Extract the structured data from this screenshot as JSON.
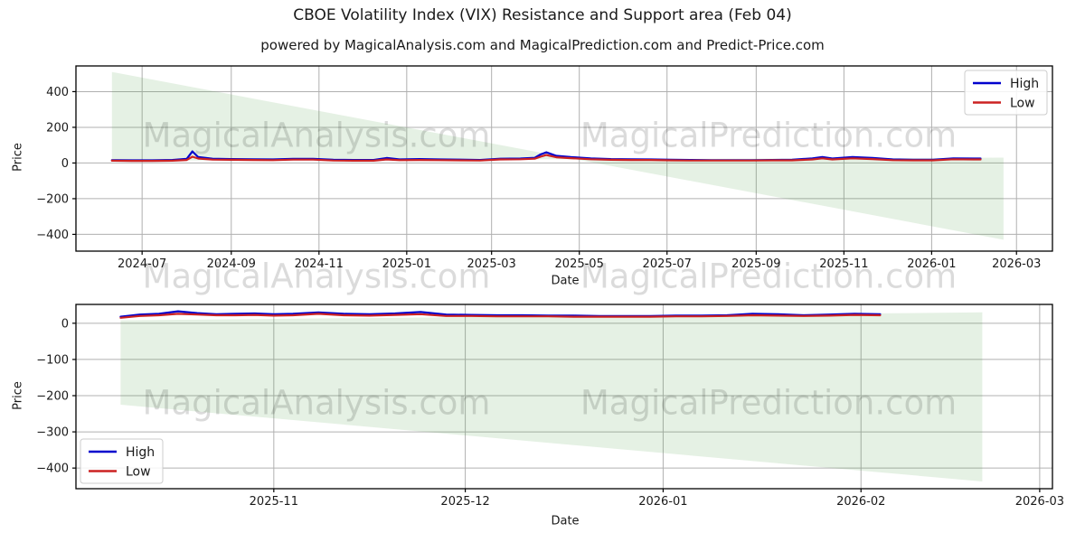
{
  "title": "CBOE Volatility Index (VIX) Resistance and Support area (Feb 04)",
  "subtitle": "powered by MagicalAnalysis.com and MagicalPrediction.com and Predict-Price.com",
  "watermarks": {
    "analysis": "MagicalAnalysis.com",
    "prediction": "MagicalPrediction.com"
  },
  "colors": {
    "high_line": "#0000cd",
    "low_line": "#cc2222",
    "support_area_fill": "#4a9b3f",
    "support_area_opacity": 0.14,
    "grid": "#b0b0b0",
    "spine": "#000000",
    "legend_border": "#cccccc",
    "watermark": "rgba(0,0,0,0.14)"
  },
  "chart_data": [
    {
      "type": "line",
      "xlabel": "Date",
      "ylabel": "Price",
      "grid": true,
      "legend_loc": "upper right",
      "x_domain": [
        "2024-05-16",
        "2026-03-26"
      ],
      "ylim": [
        -494,
        544
      ],
      "x_ticks": [
        {
          "d": "2024-07-01",
          "label": "2024-07"
        },
        {
          "d": "2024-09-01",
          "label": "2024-09"
        },
        {
          "d": "2024-11-01",
          "label": "2024-11"
        },
        {
          "d": "2025-01-01",
          "label": "2025-01"
        },
        {
          "d": "2025-03-01",
          "label": "2025-03"
        },
        {
          "d": "2025-05-01",
          "label": "2025-05"
        },
        {
          "d": "2025-07-01",
          "label": "2025-07"
        },
        {
          "d": "2025-09-01",
          "label": "2025-09"
        },
        {
          "d": "2025-11-01",
          "label": "2025-11"
        },
        {
          "d": "2026-01-01",
          "label": "2026-01"
        },
        {
          "d": "2026-03-01",
          "label": "2026-03"
        }
      ],
      "y_ticks": [
        {
          "v": 400,
          "label": "400"
        },
        {
          "v": 200,
          "label": "200"
        },
        {
          "v": 0,
          "label": "0"
        },
        {
          "v": -200,
          "label": "−200"
        },
        {
          "v": -400,
          "label": "−400"
        }
      ],
      "area": {
        "name": "resistance-support-area",
        "start": "2024-06-10",
        "end": "2026-02-20",
        "line_a": [
          510,
          -430
        ],
        "line_b": [
          13,
          30
        ]
      },
      "series": [
        {
          "name": "High",
          "color": "#0000cd",
          "dates": [
            "2024-06-10",
            "2024-06-24",
            "2024-07-08",
            "2024-07-22",
            "2024-08-01",
            "2024-08-05",
            "2024-08-09",
            "2024-08-19",
            "2024-09-02",
            "2024-09-16",
            "2024-09-30",
            "2024-10-14",
            "2024-10-28",
            "2024-11-11",
            "2024-11-25",
            "2024-12-09",
            "2024-12-18",
            "2024-12-27",
            "2025-01-10",
            "2025-01-24",
            "2025-02-07",
            "2025-02-21",
            "2025-03-07",
            "2025-03-21",
            "2025-03-31",
            "2025-04-04",
            "2025-04-08",
            "2025-04-15",
            "2025-04-25",
            "2025-05-09",
            "2025-05-23",
            "2025-06-06",
            "2025-06-20",
            "2025-07-04",
            "2025-07-18",
            "2025-08-01",
            "2025-08-15",
            "2025-08-29",
            "2025-09-12",
            "2025-09-26",
            "2025-10-10",
            "2025-10-17",
            "2025-10-24",
            "2025-11-07",
            "2025-11-21",
            "2025-12-05",
            "2025-12-19",
            "2026-01-02",
            "2026-01-16",
            "2026-01-30",
            "2026-02-04"
          ],
          "values": [
            16,
            15,
            15,
            17,
            23,
            65,
            33,
            24,
            22,
            21,
            20,
            23,
            23,
            18,
            17,
            17,
            28,
            20,
            22,
            20,
            19,
            17,
            24,
            25,
            29,
            48,
            60,
            40,
            33,
            26,
            22,
            21,
            20,
            18,
            17,
            16,
            16,
            16,
            17,
            18,
            26,
            33,
            25,
            33,
            28,
            20,
            18,
            18,
            26,
            25,
            25
          ]
        },
        {
          "name": "Low",
          "color": "#cc2222",
          "dates": [
            "2024-06-10",
            "2024-06-24",
            "2024-07-08",
            "2024-07-22",
            "2024-08-01",
            "2024-08-05",
            "2024-08-09",
            "2024-08-19",
            "2024-09-02",
            "2024-09-16",
            "2024-09-30",
            "2024-10-14",
            "2024-10-28",
            "2024-11-11",
            "2024-11-25",
            "2024-12-09",
            "2024-12-18",
            "2024-12-27",
            "2025-01-10",
            "2025-01-24",
            "2025-02-07",
            "2025-02-21",
            "2025-03-07",
            "2025-03-21",
            "2025-03-31",
            "2025-04-04",
            "2025-04-08",
            "2025-04-15",
            "2025-04-25",
            "2025-05-09",
            "2025-05-23",
            "2025-06-06",
            "2025-06-20",
            "2025-07-04",
            "2025-07-18",
            "2025-08-01",
            "2025-08-15",
            "2025-08-29",
            "2025-09-12",
            "2025-09-26",
            "2025-10-10",
            "2025-10-17",
            "2025-10-24",
            "2025-11-07",
            "2025-11-21",
            "2025-12-05",
            "2025-12-19",
            "2026-01-02",
            "2026-01-16",
            "2026-01-30",
            "2026-02-04"
          ],
          "values": [
            13,
            12,
            12,
            13,
            17,
            35,
            25,
            19,
            18,
            17,
            16,
            19,
            19,
            14,
            13,
            13,
            20,
            16,
            17,
            16,
            15,
            14,
            20,
            21,
            24,
            35,
            45,
            32,
            27,
            21,
            18,
            17,
            17,
            15,
            14,
            14,
            14,
            14,
            15,
            15,
            20,
            26,
            20,
            26,
            22,
            16,
            15,
            15,
            21,
            20,
            20
          ]
        }
      ]
    },
    {
      "type": "line",
      "xlabel": "Date",
      "ylabel": "Price",
      "grid": true,
      "legend_loc": "lower left",
      "x_domain": [
        "2025-10-01",
        "2026-03-03"
      ],
      "ylim": [
        -457,
        52
      ],
      "x_ticks": [
        {
          "d": "2025-11-01",
          "label": "2025-11"
        },
        {
          "d": "2025-12-01",
          "label": "2025-12"
        },
        {
          "d": "2026-01-01",
          "label": "2026-01"
        },
        {
          "d": "2026-02-01",
          "label": "2026-02"
        },
        {
          "d": "2026-03-01",
          "label": "2026-03"
        }
      ],
      "y_ticks": [
        {
          "v": 0,
          "label": "0"
        },
        {
          "v": -100,
          "label": "−100"
        },
        {
          "v": -200,
          "label": "−200"
        },
        {
          "v": -300,
          "label": "−300"
        },
        {
          "v": -400,
          "label": "−400"
        }
      ],
      "area": {
        "name": "resistance-support-area",
        "start": "2025-10-08",
        "end": "2026-02-20",
        "line_a": [
          -225,
          -437
        ],
        "line_b": [
          8,
          30
        ]
      },
      "series": [
        {
          "name": "High",
          "color": "#0000cd",
          "dates": [
            "2025-10-08",
            "2025-10-11",
            "2025-10-14",
            "2025-10-17",
            "2025-10-20",
            "2025-10-23",
            "2025-10-26",
            "2025-10-29",
            "2025-11-01",
            "2025-11-04",
            "2025-11-08",
            "2025-11-12",
            "2025-11-16",
            "2025-11-20",
            "2025-11-24",
            "2025-11-28",
            "2025-12-02",
            "2025-12-06",
            "2025-12-10",
            "2025-12-14",
            "2025-12-18",
            "2025-12-22",
            "2025-12-26",
            "2025-12-30",
            "2026-01-03",
            "2026-01-07",
            "2026-01-11",
            "2026-01-15",
            "2026-01-19",
            "2026-01-23",
            "2026-01-27",
            "2026-01-31",
            "2026-02-04"
          ],
          "values": [
            18,
            24,
            26,
            33,
            28,
            25,
            26,
            27,
            25,
            26,
            30,
            26,
            25,
            27,
            31,
            24,
            23,
            22,
            22,
            21,
            21,
            20,
            20,
            20,
            21,
            21,
            22,
            26,
            25,
            22,
            24,
            26,
            25
          ]
        },
        {
          "name": "Low",
          "color": "#cc2222",
          "dates": [
            "2025-10-08",
            "2025-10-11",
            "2025-10-14",
            "2025-10-17",
            "2025-10-20",
            "2025-10-23",
            "2025-10-26",
            "2025-10-29",
            "2025-11-01",
            "2025-11-04",
            "2025-11-08",
            "2025-11-12",
            "2025-11-16",
            "2025-11-20",
            "2025-11-24",
            "2025-11-28",
            "2025-12-02",
            "2025-12-06",
            "2025-12-10",
            "2025-12-14",
            "2025-12-18",
            "2025-12-22",
            "2025-12-26",
            "2025-12-30",
            "2026-01-03",
            "2026-01-07",
            "2026-01-11",
            "2026-01-15",
            "2026-01-19",
            "2026-01-23",
            "2026-01-27",
            "2026-01-31",
            "2026-02-04"
          ],
          "values": [
            15,
            20,
            22,
            26,
            24,
            22,
            22,
            23,
            21,
            22,
            26,
            22,
            21,
            23,
            25,
            20,
            20,
            19,
            19,
            19,
            18,
            18,
            18,
            18,
            19,
            19,
            20,
            22,
            21,
            20,
            21,
            23,
            22
          ]
        }
      ]
    }
  ]
}
